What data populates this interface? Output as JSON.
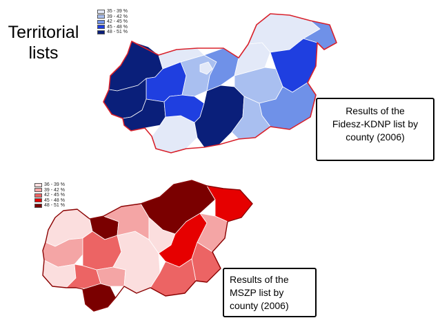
{
  "title": {
    "line1": "Territorial",
    "line2": "lists"
  },
  "maps": [
    {
      "caption": [
        "Results of the",
        "Fidesz-KDNP list by",
        "county (2006)"
      ],
      "legend": [
        {
          "label": "35 - 39 %",
          "color": "#e3e9f8"
        },
        {
          "label": "39 - 42 %",
          "color": "#a9bff0"
        },
        {
          "label": "42 - 45 %",
          "color": "#6f91e8"
        },
        {
          "label": "45 - 48 %",
          "color": "#1f3fe0"
        },
        {
          "label": "48 - 51 %",
          "color": "#0a1f7a"
        }
      ]
    },
    {
      "caption": [
        "Results of the",
        "MSZP list by",
        "county (2006)"
      ],
      "legend": [
        {
          "label": "36 - 39 %",
          "color": "#fbdede"
        },
        {
          "label": "39 - 42 %",
          "color": "#f4a5a5"
        },
        {
          "label": "42 - 45 %",
          "color": "#ec6464"
        },
        {
          "label": "45 - 48 %",
          "color": "#e60000"
        },
        {
          "label": "48 - 51 %",
          "color": "#7a0000"
        }
      ]
    }
  ]
}
